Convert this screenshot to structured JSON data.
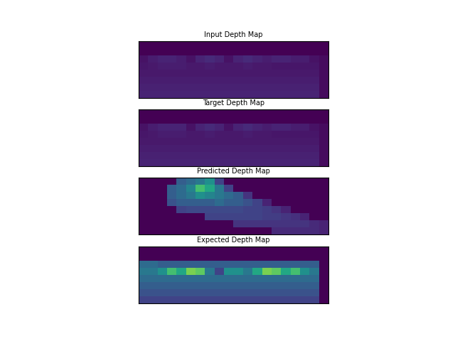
{
  "chart_data": [
    {
      "type": "image",
      "title": "Input Depth Map",
      "tick_labels": false,
      "color_range": [
        0,
        1
      ],
      "cells": [
        [
          0,
          0,
          0,
          0,
          0,
          0,
          0,
          0,
          0,
          0,
          0,
          0,
          0,
          0,
          0,
          0,
          0,
          0,
          0,
          0
        ],
        [
          0,
          0,
          0,
          0,
          0,
          0,
          0,
          0,
          0,
          0,
          0,
          0,
          0,
          0,
          0,
          0,
          0,
          0,
          0,
          0
        ],
        [
          0.05,
          0.08,
          0.1,
          0.1,
          0.08,
          0.05,
          0.1,
          0.12,
          0.1,
          0.05,
          0.1,
          0.12,
          0.1,
          0.08,
          0.1,
          0.1,
          0.08,
          0.08,
          0.05,
          0.03
        ],
        [
          0.06,
          0.07,
          0.08,
          0.08,
          0.08,
          0.07,
          0.07,
          0.08,
          0.07,
          0.07,
          0.07,
          0.08,
          0.07,
          0.07,
          0.06,
          0.06,
          0.06,
          0.06,
          0.06,
          0.03
        ],
        [
          0.07,
          0.07,
          0.07,
          0.07,
          0.07,
          0.07,
          0.07,
          0.07,
          0.07,
          0.07,
          0.07,
          0.07,
          0.07,
          0.07,
          0.07,
          0.07,
          0.07,
          0.07,
          0.07,
          0.03
        ],
        [
          0.08,
          0.08,
          0.08,
          0.08,
          0.08,
          0.08,
          0.08,
          0.08,
          0.08,
          0.08,
          0.08,
          0.08,
          0.08,
          0.08,
          0.08,
          0.08,
          0.08,
          0.08,
          0.08,
          0.03
        ],
        [
          0.09,
          0.09,
          0.09,
          0.09,
          0.09,
          0.09,
          0.09,
          0.09,
          0.09,
          0.09,
          0.09,
          0.09,
          0.09,
          0.09,
          0.09,
          0.09,
          0.09,
          0.09,
          0.09,
          0.03
        ],
        [
          0.1,
          0.1,
          0.1,
          0.1,
          0.1,
          0.1,
          0.1,
          0.1,
          0.1,
          0.1,
          0.1,
          0.1,
          0.1,
          0.1,
          0.1,
          0.1,
          0.1,
          0.1,
          0.1,
          0.03
        ]
      ]
    },
    {
      "type": "image",
      "title": "Target Depth Map",
      "tick_labels": false,
      "color_range": [
        0,
        1
      ],
      "cells": [
        [
          0,
          0,
          0,
          0,
          0,
          0,
          0,
          0,
          0,
          0,
          0,
          0,
          0,
          0,
          0,
          0,
          0,
          0,
          0,
          0
        ],
        [
          0,
          0,
          0,
          0,
          0,
          0,
          0,
          0,
          0,
          0,
          0,
          0,
          0,
          0,
          0,
          0,
          0,
          0,
          0,
          0
        ],
        [
          0.05,
          0.08,
          0.1,
          0.1,
          0.1,
          0.05,
          0.1,
          0.12,
          0.1,
          0.05,
          0.1,
          0.12,
          0.1,
          0.08,
          0.1,
          0.1,
          0.08,
          0.08,
          0.05,
          0.03
        ],
        [
          0.06,
          0.07,
          0.08,
          0.08,
          0.08,
          0.07,
          0.07,
          0.08,
          0.07,
          0.07,
          0.07,
          0.08,
          0.07,
          0.07,
          0.06,
          0.06,
          0.06,
          0.06,
          0.06,
          0.03
        ],
        [
          0.07,
          0.07,
          0.07,
          0.07,
          0.07,
          0.07,
          0.07,
          0.07,
          0.07,
          0.07,
          0.07,
          0.07,
          0.07,
          0.07,
          0.07,
          0.07,
          0.07,
          0.07,
          0.07,
          0.03
        ],
        [
          0.08,
          0.08,
          0.08,
          0.08,
          0.08,
          0.08,
          0.08,
          0.08,
          0.08,
          0.08,
          0.08,
          0.08,
          0.08,
          0.08,
          0.08,
          0.08,
          0.08,
          0.08,
          0.08,
          0.03
        ],
        [
          0.09,
          0.09,
          0.09,
          0.09,
          0.09,
          0.09,
          0.09,
          0.09,
          0.09,
          0.09,
          0.09,
          0.09,
          0.09,
          0.09,
          0.09,
          0.09,
          0.09,
          0.09,
          0.09,
          0.03
        ],
        [
          0.1,
          0.1,
          0.1,
          0.1,
          0.1,
          0.1,
          0.1,
          0.1,
          0.1,
          0.1,
          0.1,
          0.1,
          0.1,
          0.1,
          0.1,
          0.1,
          0.1,
          0.1,
          0.1,
          0.03
        ]
      ]
    },
    {
      "type": "image",
      "title": "Predicted Depth Map",
      "tick_labels": false,
      "color_range": [
        0,
        1
      ],
      "cells": [
        [
          0,
          0,
          0,
          0,
          0.3,
          0.35,
          0.4,
          0.5,
          0.2,
          0,
          0,
          0,
          0,
          0,
          0,
          0,
          0,
          0,
          0,
          0
        ],
        [
          0,
          0,
          0,
          0.3,
          0.35,
          0.45,
          0.7,
          0.6,
          0.4,
          0.2,
          0,
          0,
          0,
          0,
          0,
          0,
          0,
          0,
          0,
          0
        ],
        [
          0,
          0,
          0,
          0.3,
          0.35,
          0.4,
          0.5,
          0.45,
          0.4,
          0.35,
          0.3,
          0.15,
          0,
          0,
          0,
          0,
          0,
          0,
          0,
          0
        ],
        [
          0,
          0,
          0,
          0.25,
          0.3,
          0.3,
          0.3,
          0.3,
          0.35,
          0.3,
          0.3,
          0.25,
          0.2,
          0.1,
          0,
          0,
          0,
          0,
          0,
          0
        ],
        [
          0,
          0,
          0,
          0,
          0.2,
          0.22,
          0.22,
          0.22,
          0.22,
          0.22,
          0.22,
          0.2,
          0.2,
          0.18,
          0.15,
          0.1,
          0,
          0,
          0,
          0
        ],
        [
          0,
          0,
          0,
          0,
          0,
          0,
          0,
          0.2,
          0.2,
          0.2,
          0.2,
          0.2,
          0.2,
          0.18,
          0.18,
          0.16,
          0.14,
          0.1,
          0,
          0
        ],
        [
          0,
          0,
          0,
          0,
          0,
          0,
          0,
          0,
          0,
          0,
          0.15,
          0.15,
          0.15,
          0.15,
          0.15,
          0.15,
          0.15,
          0.15,
          0.12,
          0.1
        ],
        [
          0,
          0,
          0,
          0,
          0,
          0,
          0,
          0,
          0,
          0,
          0,
          0,
          0,
          0,
          0.12,
          0.12,
          0.12,
          0.12,
          0.12,
          0.1
        ]
      ]
    },
    {
      "type": "image",
      "title": "Expected Depth Map",
      "tick_labels": false,
      "color_range": [
        0,
        1
      ],
      "cells": [
        [
          0,
          0,
          0,
          0,
          0,
          0,
          0,
          0,
          0,
          0,
          0,
          0,
          0,
          0,
          0,
          0,
          0,
          0,
          0,
          0
        ],
        [
          0,
          0,
          0,
          0,
          0,
          0,
          0,
          0,
          0,
          0,
          0,
          0,
          0,
          0,
          0,
          0,
          0,
          0,
          0,
          0
        ],
        [
          0.35,
          0.35,
          0.3,
          0.3,
          0.3,
          0.3,
          0.3,
          0.3,
          0.3,
          0.3,
          0.3,
          0.3,
          0.3,
          0.3,
          0.3,
          0.3,
          0.3,
          0.3,
          0.3,
          0
        ],
        [
          0.4,
          0.4,
          0.5,
          0.7,
          0.6,
          0.8,
          0.75,
          0.4,
          0.2,
          0.5,
          0.5,
          0.4,
          0.6,
          0.8,
          0.75,
          0.6,
          0.7,
          0.5,
          0.4,
          0
        ],
        [
          0.35,
          0.35,
          0.35,
          0.35,
          0.35,
          0.35,
          0.35,
          0.35,
          0.35,
          0.35,
          0.35,
          0.35,
          0.35,
          0.35,
          0.35,
          0.35,
          0.35,
          0.35,
          0.35,
          0
        ],
        [
          0.3,
          0.3,
          0.3,
          0.3,
          0.3,
          0.3,
          0.3,
          0.3,
          0.3,
          0.3,
          0.3,
          0.3,
          0.3,
          0.3,
          0.3,
          0.3,
          0.3,
          0.3,
          0.3,
          0
        ],
        [
          0.25,
          0.25,
          0.25,
          0.25,
          0.25,
          0.25,
          0.25,
          0.25,
          0.25,
          0.25,
          0.25,
          0.25,
          0.25,
          0.25,
          0.25,
          0.25,
          0.25,
          0.25,
          0.25,
          0
        ],
        [
          0.2,
          0.2,
          0.2,
          0.2,
          0.2,
          0.2,
          0.2,
          0.2,
          0.2,
          0.2,
          0.2,
          0.2,
          0.2,
          0.2,
          0.2,
          0.2,
          0.2,
          0.2,
          0.2,
          0
        ]
      ]
    }
  ]
}
